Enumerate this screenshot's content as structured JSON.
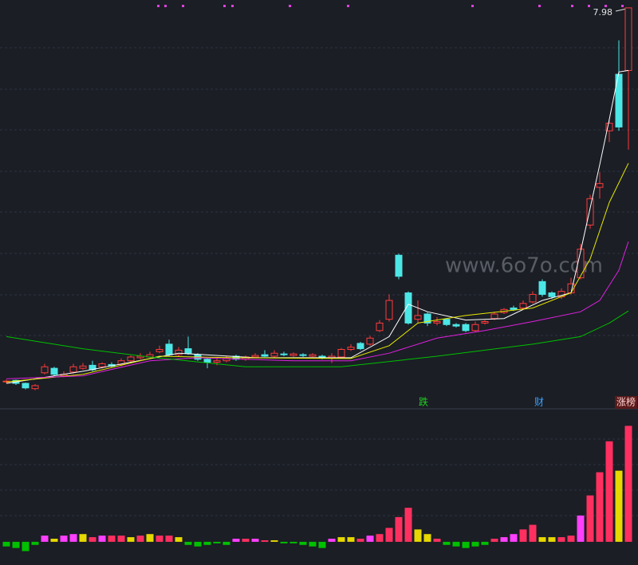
{
  "chart_data": {
    "type": "candlestick",
    "price_label": "7.98",
    "watermark": "www.6o7o.com",
    "markers": [
      "跌",
      "财",
      "涨榜"
    ],
    "ylim": [
      2.8,
      8.0
    ],
    "up_color": "#ff3b3b",
    "down_color": "#4de6e6",
    "open": [
      3.02,
      3.04,
      3.0,
      2.93,
      3.14,
      3.2,
      3.1,
      3.15,
      3.2,
      3.24,
      3.22,
      3.25,
      3.25,
      3.3,
      3.34,
      3.35,
      3.42,
      3.52,
      3.38,
      3.46,
      3.38,
      3.32,
      3.28,
      3.3,
      3.36,
      3.32,
      3.35,
      3.38,
      3.36,
      3.39,
      3.37,
      3.38,
      3.36,
      3.36,
      3.34,
      3.35,
      3.45,
      3.53,
      3.52,
      3.7,
      3.85,
      4.7,
      4.2,
      3.85,
      3.92,
      3.8,
      3.85,
      3.78,
      3.78,
      3.7,
      3.8,
      3.86,
      3.94,
      4.0,
      4.0,
      4.08,
      4.35,
      4.2,
      4.15,
      4.2,
      4.4,
      5.1,
      5.6,
      6.35,
      7.1,
      7.15
    ],
    "high": [
      3.05,
      3.05,
      3.01,
      2.99,
      3.26,
      3.22,
      3.16,
      3.26,
      3.27,
      3.3,
      3.28,
      3.28,
      3.33,
      3.37,
      3.4,
      3.42,
      3.5,
      3.58,
      3.48,
      3.62,
      3.4,
      3.34,
      3.34,
      3.36,
      3.38,
      3.37,
      3.4,
      3.44,
      3.44,
      3.42,
      3.41,
      3.4,
      3.4,
      3.38,
      3.4,
      3.47,
      3.52,
      3.55,
      3.63,
      3.84,
      4.18,
      4.72,
      4.22,
      4.1,
      3.94,
      3.88,
      3.86,
      3.8,
      3.8,
      3.82,
      3.84,
      3.95,
      4.0,
      4.03,
      4.1,
      4.22,
      4.38,
      4.22,
      4.26,
      4.4,
      4.85,
      5.5,
      5.8,
      6.5,
      7.55,
      7.98
    ],
    "low": [
      3.0,
      2.98,
      2.92,
      2.91,
      3.12,
      3.1,
      3.08,
      3.13,
      3.18,
      3.16,
      3.2,
      3.21,
      3.23,
      3.28,
      3.32,
      3.33,
      3.4,
      3.36,
      3.36,
      3.38,
      3.3,
      3.2,
      3.24,
      3.28,
      3.3,
      3.3,
      3.34,
      3.35,
      3.34,
      3.36,
      3.35,
      3.35,
      3.35,
      3.32,
      3.27,
      3.33,
      3.43,
      3.44,
      3.5,
      3.68,
      3.82,
      4.38,
      3.78,
      3.8,
      3.76,
      3.77,
      3.76,
      3.74,
      3.68,
      3.68,
      3.78,
      3.84,
      3.92,
      3.96,
      3.98,
      4.06,
      4.15,
      4.12,
      4.12,
      4.18,
      4.38,
      5.05,
      5.45,
      6.2,
      6.35,
      6.1
    ],
    "close": [
      3.03,
      3.0,
      2.94,
      2.97,
      3.22,
      3.12,
      3.12,
      3.22,
      3.23,
      3.18,
      3.26,
      3.23,
      3.3,
      3.35,
      3.36,
      3.38,
      3.45,
      3.38,
      3.44,
      3.4,
      3.32,
      3.28,
      3.3,
      3.33,
      3.32,
      3.35,
      3.37,
      3.36,
      3.4,
      3.38,
      3.39,
      3.37,
      3.38,
      3.34,
      3.36,
      3.45,
      3.48,
      3.46,
      3.6,
      3.8,
      4.1,
      4.42,
      3.8,
      3.9,
      3.8,
      3.82,
      3.78,
      3.76,
      3.7,
      3.78,
      3.82,
      3.92,
      3.98,
      3.98,
      4.06,
      4.18,
      4.18,
      4.15,
      4.22,
      4.32,
      4.78,
      5.45,
      5.65,
      6.45,
      6.4,
      7.98
    ],
    "averages": [
      {
        "color": "#ffffff",
        "x": [
          0,
          8,
          18,
          26,
          36,
          40,
          42,
          44,
          48,
          52,
          56,
          59,
          60,
          62,
          63,
          64,
          65
        ],
        "values": [
          3.0,
          3.16,
          3.4,
          3.34,
          3.34,
          3.62,
          4.05,
          3.95,
          3.84,
          3.86,
          4.1,
          4.2,
          4.75,
          5.9,
          6.5,
          7.13,
          7.15
        ]
      },
      {
        "color": "#e8e800",
        "x": [
          0,
          8,
          16,
          24,
          36,
          40,
          43,
          48,
          55,
          59,
          61,
          63,
          65
        ],
        "values": [
          3.02,
          3.12,
          3.36,
          3.34,
          3.33,
          3.5,
          3.8,
          3.9,
          4.0,
          4.2,
          4.65,
          5.4,
          5.92
        ]
      },
      {
        "color": "#e020e0",
        "x": [
          0,
          8,
          15,
          20,
          30,
          36,
          40,
          45,
          50,
          55,
          60,
          62,
          64,
          65
        ],
        "values": [
          3.06,
          3.1,
          3.3,
          3.34,
          3.3,
          3.3,
          3.4,
          3.6,
          3.7,
          3.82,
          3.95,
          4.1,
          4.5,
          4.88
        ]
      },
      {
        "color": "#00c000",
        "x": [
          0,
          8,
          15,
          25,
          35,
          45,
          55,
          60,
          63,
          65
        ],
        "values": [
          3.62,
          3.46,
          3.35,
          3.22,
          3.22,
          3.36,
          3.52,
          3.62,
          3.8,
          3.96
        ]
      }
    ],
    "volume": {
      "ylim": [
        -15,
        85
      ],
      "values": [
        -3,
        -4,
        -6,
        -2,
        4,
        2,
        4,
        5,
        5,
        3,
        4,
        4,
        4,
        3,
        4,
        5,
        4,
        4,
        3,
        -2,
        -3,
        -2,
        -1,
        -2,
        2,
        2,
        2,
        1,
        1,
        -1,
        -1,
        -2,
        -3,
        -4,
        2,
        3,
        3,
        2,
        4,
        5,
        9,
        16,
        22,
        8,
        5,
        2,
        -2,
        -3,
        -4,
        -3,
        -2,
        2,
        3,
        5,
        8,
        11,
        3,
        3,
        3,
        4,
        17,
        30,
        45,
        65,
        46,
        75
      ],
      "colors": [
        "#00c000",
        "#00c000",
        "#00c000",
        "#00c000",
        "#ff40ff",
        "#e6d800",
        "#ff40ff",
        "#ff40ff",
        "#e6d800",
        "#ff3060",
        "#ff40ff",
        "#ff3060",
        "#ff3060",
        "#e6d800",
        "#ff3060",
        "#e6d800",
        "#ff3060",
        "#ff3060",
        "#e6d800",
        "#00c000",
        "#00c000",
        "#00c000",
        "#00c000",
        "#00c000",
        "#ff40ff",
        "#ff3060",
        "#ff40ff",
        "#ff3060",
        "#e6d800",
        "#00c000",
        "#00c000",
        "#00c000",
        "#00c000",
        "#00c000",
        "#ff40ff",
        "#e6d800",
        "#e6d800",
        "#ff3060",
        "#ff40ff",
        "#ff3060",
        "#ff3060",
        "#ff3060",
        "#ff3060",
        "#e6d800",
        "#e6d800",
        "#ff3060",
        "#00c000",
        "#00c000",
        "#00c000",
        "#00c000",
        "#00c000",
        "#ff3060",
        "#ff40ff",
        "#ff40ff",
        "#ff3060",
        "#ff3060",
        "#e6d800",
        "#e6d800",
        "#ff3060",
        "#ff3060",
        "#ff40ff",
        "#ff3060",
        "#ff3060",
        "#ff3060",
        "#e6d800",
        "#ff3060"
      ]
    }
  }
}
